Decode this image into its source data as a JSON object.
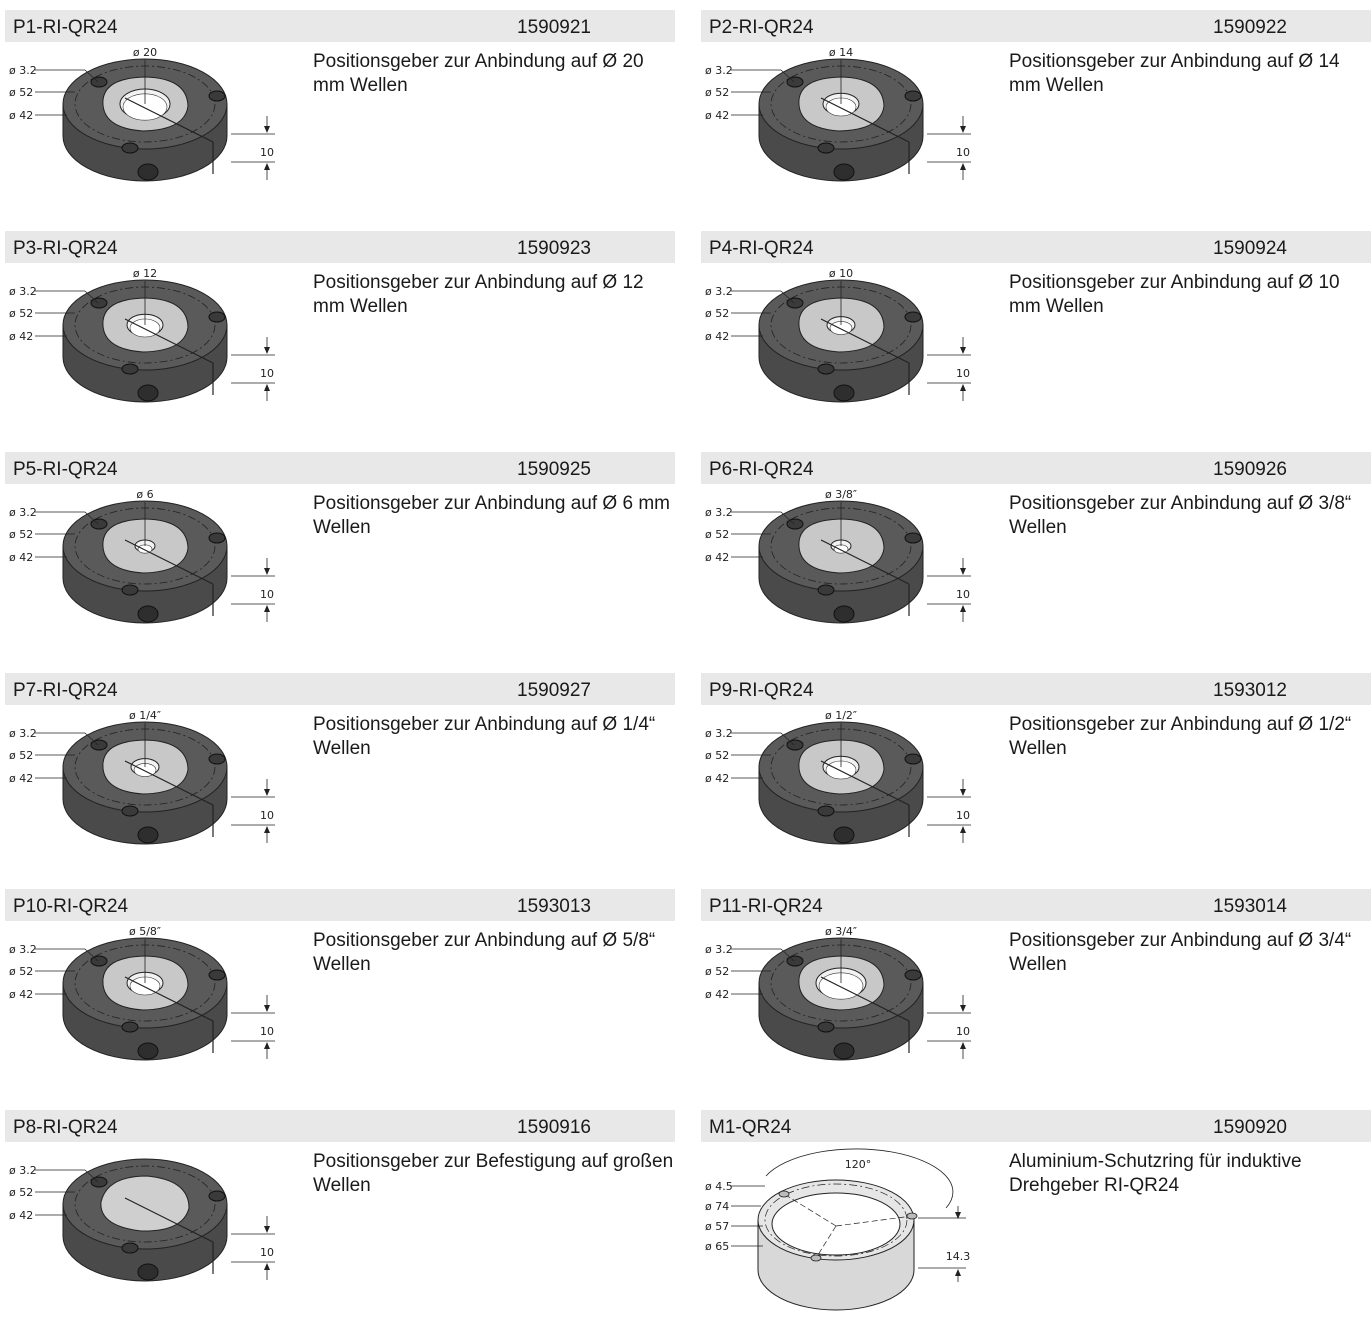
{
  "items": [
    {
      "name": "P1-RI-QR24",
      "number": "1590921",
      "desc": "Positionsgeber zur Anbindung auf Ø 20 mm Wellen",
      "dims": {
        "top": "ø 20",
        "d1": "ø 3.2",
        "d2": "ø 52",
        "d3": "ø 42",
        "h": "10"
      },
      "bore": "large"
    },
    {
      "name": "P2-RI-QR24",
      "number": "1590922",
      "desc": "Positionsgeber zur Anbindung auf Ø 14 mm Wellen",
      "dims": {
        "top": "ø 14",
        "d1": "ø 3.2",
        "d2": "ø 52",
        "d3": "ø 42",
        "h": "10"
      },
      "bore": "medium"
    },
    {
      "name": "P3-RI-QR24",
      "number": "1590923",
      "desc": "Positionsgeber zur Anbindung auf Ø 12 mm Wellen",
      "dims": {
        "top": "ø 12",
        "d1": "ø 3.2",
        "d2": "ø 52",
        "d3": "ø 42",
        "h": "10"
      },
      "bore": "medium"
    },
    {
      "name": "P4-RI-QR24",
      "number": "1590924",
      "desc": "Positionsgeber zur Anbindung auf Ø 10 mm Wellen",
      "dims": {
        "top": "ø 10",
        "d1": "ø 3.2",
        "d2": "ø 52",
        "d3": "ø 42",
        "h": "10"
      },
      "bore": "small"
    },
    {
      "name": "P5-RI-QR24",
      "number": "1590925",
      "desc": "Positionsgeber zur Anbindung auf Ø 6 mm Wellen",
      "dims": {
        "top": "ø 6",
        "d1": "ø 3.2",
        "d2": "ø 52",
        "d3": "ø 42",
        "h": "10"
      },
      "bore": "tiny"
    },
    {
      "name": "P6-RI-QR24",
      "number": "1590926",
      "desc": "Positionsgeber zur Anbindung auf Ø 3/8“ Wellen",
      "dims": {
        "top": "ø 3/8″",
        "d1": "ø 3.2",
        "d2": "ø 52",
        "d3": "ø 42",
        "h": "10"
      },
      "bore": "tiny"
    },
    {
      "name": "P7-RI-QR24",
      "number": "1590927",
      "desc": "Positionsgeber zur Anbindung auf Ø 1/4“ Wellen",
      "dims": {
        "top": "ø 1/4″",
        "d1": "ø 3.2",
        "d2": "ø 52",
        "d3": "ø 42",
        "h": "10"
      },
      "bore": "small"
    },
    {
      "name": "P9-RI-QR24",
      "number": "1593012",
      "desc": "Positionsgeber zur Anbindung auf Ø 1/2“ Wellen",
      "dims": {
        "top": "ø 1/2″",
        "d1": "ø 3.2",
        "d2": "ø 52",
        "d3": "ø 42",
        "h": "10"
      },
      "bore": "medium"
    },
    {
      "name": "P10-RI-QR24",
      "number": "1593013",
      "desc": "Positionsgeber zur Anbindung auf Ø 5/8“ Wellen",
      "dims": {
        "top": "ø 5/8″",
        "d1": "ø 3.2",
        "d2": "ø 52",
        "d3": "ø 42",
        "h": "10"
      },
      "bore": "medium"
    },
    {
      "name": "P11-RI-QR24",
      "number": "1593014",
      "desc": "Positionsgeber zur Anbindung auf Ø 3/4“ Wellen",
      "dims": {
        "top": "ø 3/4″",
        "d1": "ø 3.2",
        "d2": "ø 52",
        "d3": "ø 42",
        "h": "10"
      },
      "bore": "large"
    },
    {
      "name": "P8-RI-QR24",
      "number": "1590916",
      "desc": "Positionsgeber zur Befestigung auf großen Wellen",
      "dims": {
        "top": "",
        "d1": "ø 3.2",
        "d2": "ø 52",
        "d3": "ø 42",
        "h": "10"
      },
      "bore": "none"
    },
    {
      "name": "M1-QR24",
      "number": "1590920",
      "desc": "Aluminium-Schutzring für induktive Drehgeber RI-QR24",
      "dims": {
        "angle": "120°",
        "d1": "ø 4.5",
        "d2": "ø 74",
        "d3": "ø 57",
        "d4": "ø 65",
        "h": "14.3"
      },
      "bore": "ring"
    }
  ]
}
